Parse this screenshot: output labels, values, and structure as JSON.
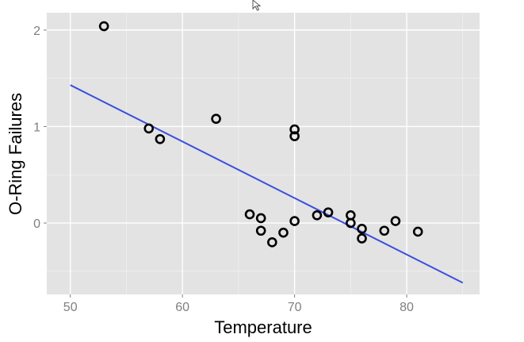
{
  "chart_data": {
    "type": "scatter",
    "title": "",
    "xlabel": "Temperature",
    "ylabel": "O-Ring Failures",
    "xlim": [
      47.9,
      86.5
    ],
    "ylim": [
      -0.74,
      2.18
    ],
    "x_ticks": [
      50,
      60,
      70,
      80
    ],
    "y_ticks": [
      0,
      1,
      2
    ],
    "x_tick_labels": [
      "50",
      "60",
      "70",
      "80"
    ],
    "y_tick_labels": [
      "0",
      "1",
      "2"
    ],
    "grid": true,
    "legend": "none",
    "colors": {
      "panel_background": "#e3e3e3",
      "grid": "#ffffff",
      "points": "#000000",
      "fit_line": "#3a4fe0"
    },
    "points": {
      "x": [
        53,
        57,
        58,
        63,
        66,
        67,
        67,
        68,
        69,
        70,
        70,
        70,
        72,
        73,
        75,
        75,
        76,
        76,
        78,
        79,
        81
      ],
      "y": [
        2.04,
        0.98,
        0.87,
        1.08,
        0.09,
        0.05,
        -0.08,
        -0.2,
        -0.1,
        0.97,
        0.9,
        0.02,
        0.08,
        0.11,
        0.08,
        0.0,
        -0.06,
        -0.16,
        -0.08,
        0.02,
        -0.09
      ]
    },
    "fit_line": {
      "type": "linear",
      "x": [
        50,
        85
      ],
      "y": [
        1.43,
        -0.62
      ]
    }
  },
  "cursor_icon": "mouse-pointer-icon"
}
